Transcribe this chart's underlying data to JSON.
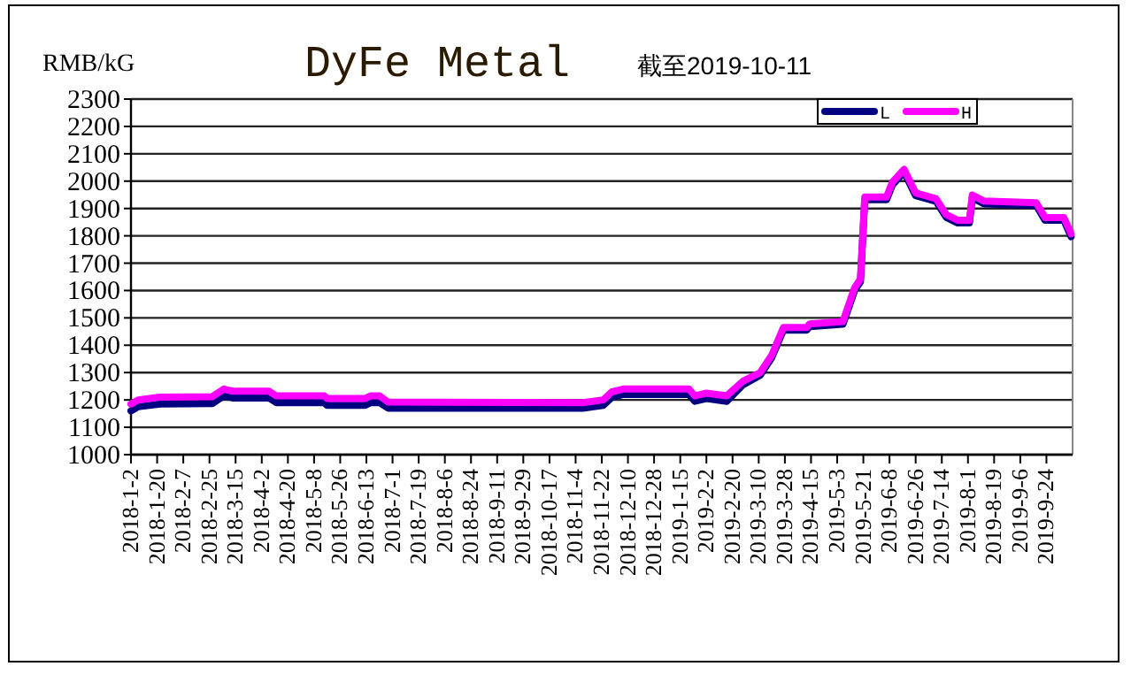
{
  "chart_data": {
    "type": "line",
    "title": "DyFe Metal",
    "subtitle": "截至2019-10-11",
    "ylabel": "RMB/kG",
    "x": [
      "2018-01-02",
      "2018-01-07",
      "2018-01-22",
      "2018-02-27",
      "2018-03-07",
      "2018-03-13",
      "2018-04-07",
      "2018-04-12",
      "2018-05-15",
      "2018-05-17",
      "2018-06-12",
      "2018-06-16",
      "2018-06-22",
      "2018-06-28",
      "2018-11-09",
      "2018-11-23",
      "2018-11-29",
      "2018-12-07",
      "2019-01-21",
      "2019-01-25",
      "2019-02-02",
      "2019-02-16",
      "2019-02-27",
      "2019-03-11",
      "2019-03-19",
      "2019-03-27",
      "2019-04-12",
      "2019-04-14",
      "2019-05-07",
      "2019-05-15",
      "2019-05-19",
      "2019-05-22",
      "2019-06-06",
      "2019-06-10",
      "2019-06-18",
      "2019-06-26",
      "2019-07-10",
      "2019-07-17",
      "2019-07-25",
      "2019-08-02",
      "2019-08-04",
      "2019-08-12",
      "2019-09-17",
      "2019-09-23",
      "2019-10-06",
      "2019-10-11"
    ],
    "series": [
      {
        "name": "L",
        "color": "#000080",
        "values": [
          1160,
          1175,
          1185,
          1187,
          1215,
          1207,
          1207,
          1190,
          1190,
          1180,
          1180,
          1190,
          1190,
          1170,
          1170,
          1180,
          1210,
          1220,
          1220,
          1195,
          1205,
          1195,
          1255,
          1290,
          1355,
          1455,
          1455,
          1468,
          1477,
          1600,
          1632,
          1932,
          1932,
          1986,
          2033,
          1947,
          1926,
          1868,
          1847,
          1847,
          1939,
          1917,
          1911,
          1857,
          1857,
          1797
        ]
      },
      {
        "name": "H",
        "color": "#ff00ff",
        "values": [
          1185,
          1200,
          1210,
          1212,
          1240,
          1232,
          1232,
          1215,
          1215,
          1205,
          1205,
          1215,
          1215,
          1192,
          1190,
          1200,
          1230,
          1240,
          1240,
          1215,
          1225,
          1215,
          1268,
          1300,
          1364,
          1465,
          1465,
          1478,
          1487,
          1610,
          1642,
          1942,
          1942,
          1996,
          2043,
          1957,
          1936,
          1878,
          1857,
          1857,
          1949,
          1927,
          1921,
          1867,
          1867,
          1807
        ]
      }
    ],
    "xlim": [
      "2018-01-02",
      "2019-10-12"
    ],
    "xticks": [
      {
        "value": "2018-01-02",
        "label": "2018-1-2"
      },
      {
        "value": "2018-01-20",
        "label": "2018-1-20"
      },
      {
        "value": "2018-02-07",
        "label": "2018-2-7"
      },
      {
        "value": "2018-02-25",
        "label": "2018-2-25"
      },
      {
        "value": "2018-03-15",
        "label": "2018-3-15"
      },
      {
        "value": "2018-04-02",
        "label": "2018-4-2"
      },
      {
        "value": "2018-04-20",
        "label": "2018-4-20"
      },
      {
        "value": "2018-05-08",
        "label": "2018-5-8"
      },
      {
        "value": "2018-05-26",
        "label": "2018-5-26"
      },
      {
        "value": "2018-06-13",
        "label": "2018-6-13"
      },
      {
        "value": "2018-07-01",
        "label": "2018-7-1"
      },
      {
        "value": "2018-07-19",
        "label": "2018-7-19"
      },
      {
        "value": "2018-08-06",
        "label": "2018-8-6"
      },
      {
        "value": "2018-08-24",
        "label": "2018-8-24"
      },
      {
        "value": "2018-09-11",
        "label": "2018-9-11"
      },
      {
        "value": "2018-09-29",
        "label": "2018-9-29"
      },
      {
        "value": "2018-10-17",
        "label": "2018-10-17"
      },
      {
        "value": "2018-11-04",
        "label": "2018-11-4"
      },
      {
        "value": "2018-11-22",
        "label": "2018-11-22"
      },
      {
        "value": "2018-12-10",
        "label": "2018-12-10"
      },
      {
        "value": "2018-12-28",
        "label": "2018-12-28"
      },
      {
        "value": "2019-01-15",
        "label": "2019-1-15"
      },
      {
        "value": "2019-02-02",
        "label": "2019-2-2"
      },
      {
        "value": "2019-02-20",
        "label": "2019-2-20"
      },
      {
        "value": "2019-03-10",
        "label": "2019-3-10"
      },
      {
        "value": "2019-03-28",
        "label": "2019-3-28"
      },
      {
        "value": "2019-04-15",
        "label": "2019-4-15"
      },
      {
        "value": "2019-05-03",
        "label": "2019-5-3"
      },
      {
        "value": "2019-05-21",
        "label": "2019-5-21"
      },
      {
        "value": "2019-06-08",
        "label": "2019-6-8"
      },
      {
        "value": "2019-06-26",
        "label": "2019-6-26"
      },
      {
        "value": "2019-07-14",
        "label": "2019-7-14"
      },
      {
        "value": "2019-08-01",
        "label": "2019-8-1"
      },
      {
        "value": "2019-08-19",
        "label": "2019-8-19"
      },
      {
        "value": "2019-09-06",
        "label": "2019-9-6"
      },
      {
        "value": "2019-09-24",
        "label": "2019-9-24"
      }
    ],
    "ylim": [
      1000,
      2300
    ],
    "yticks": [
      1000,
      1100,
      1200,
      1300,
      1400,
      1500,
      1600,
      1700,
      1800,
      1900,
      2000,
      2100,
      2200,
      2300
    ],
    "grid": "y",
    "legend": "top right",
    "marker": "none",
    "line_style": "solid"
  }
}
